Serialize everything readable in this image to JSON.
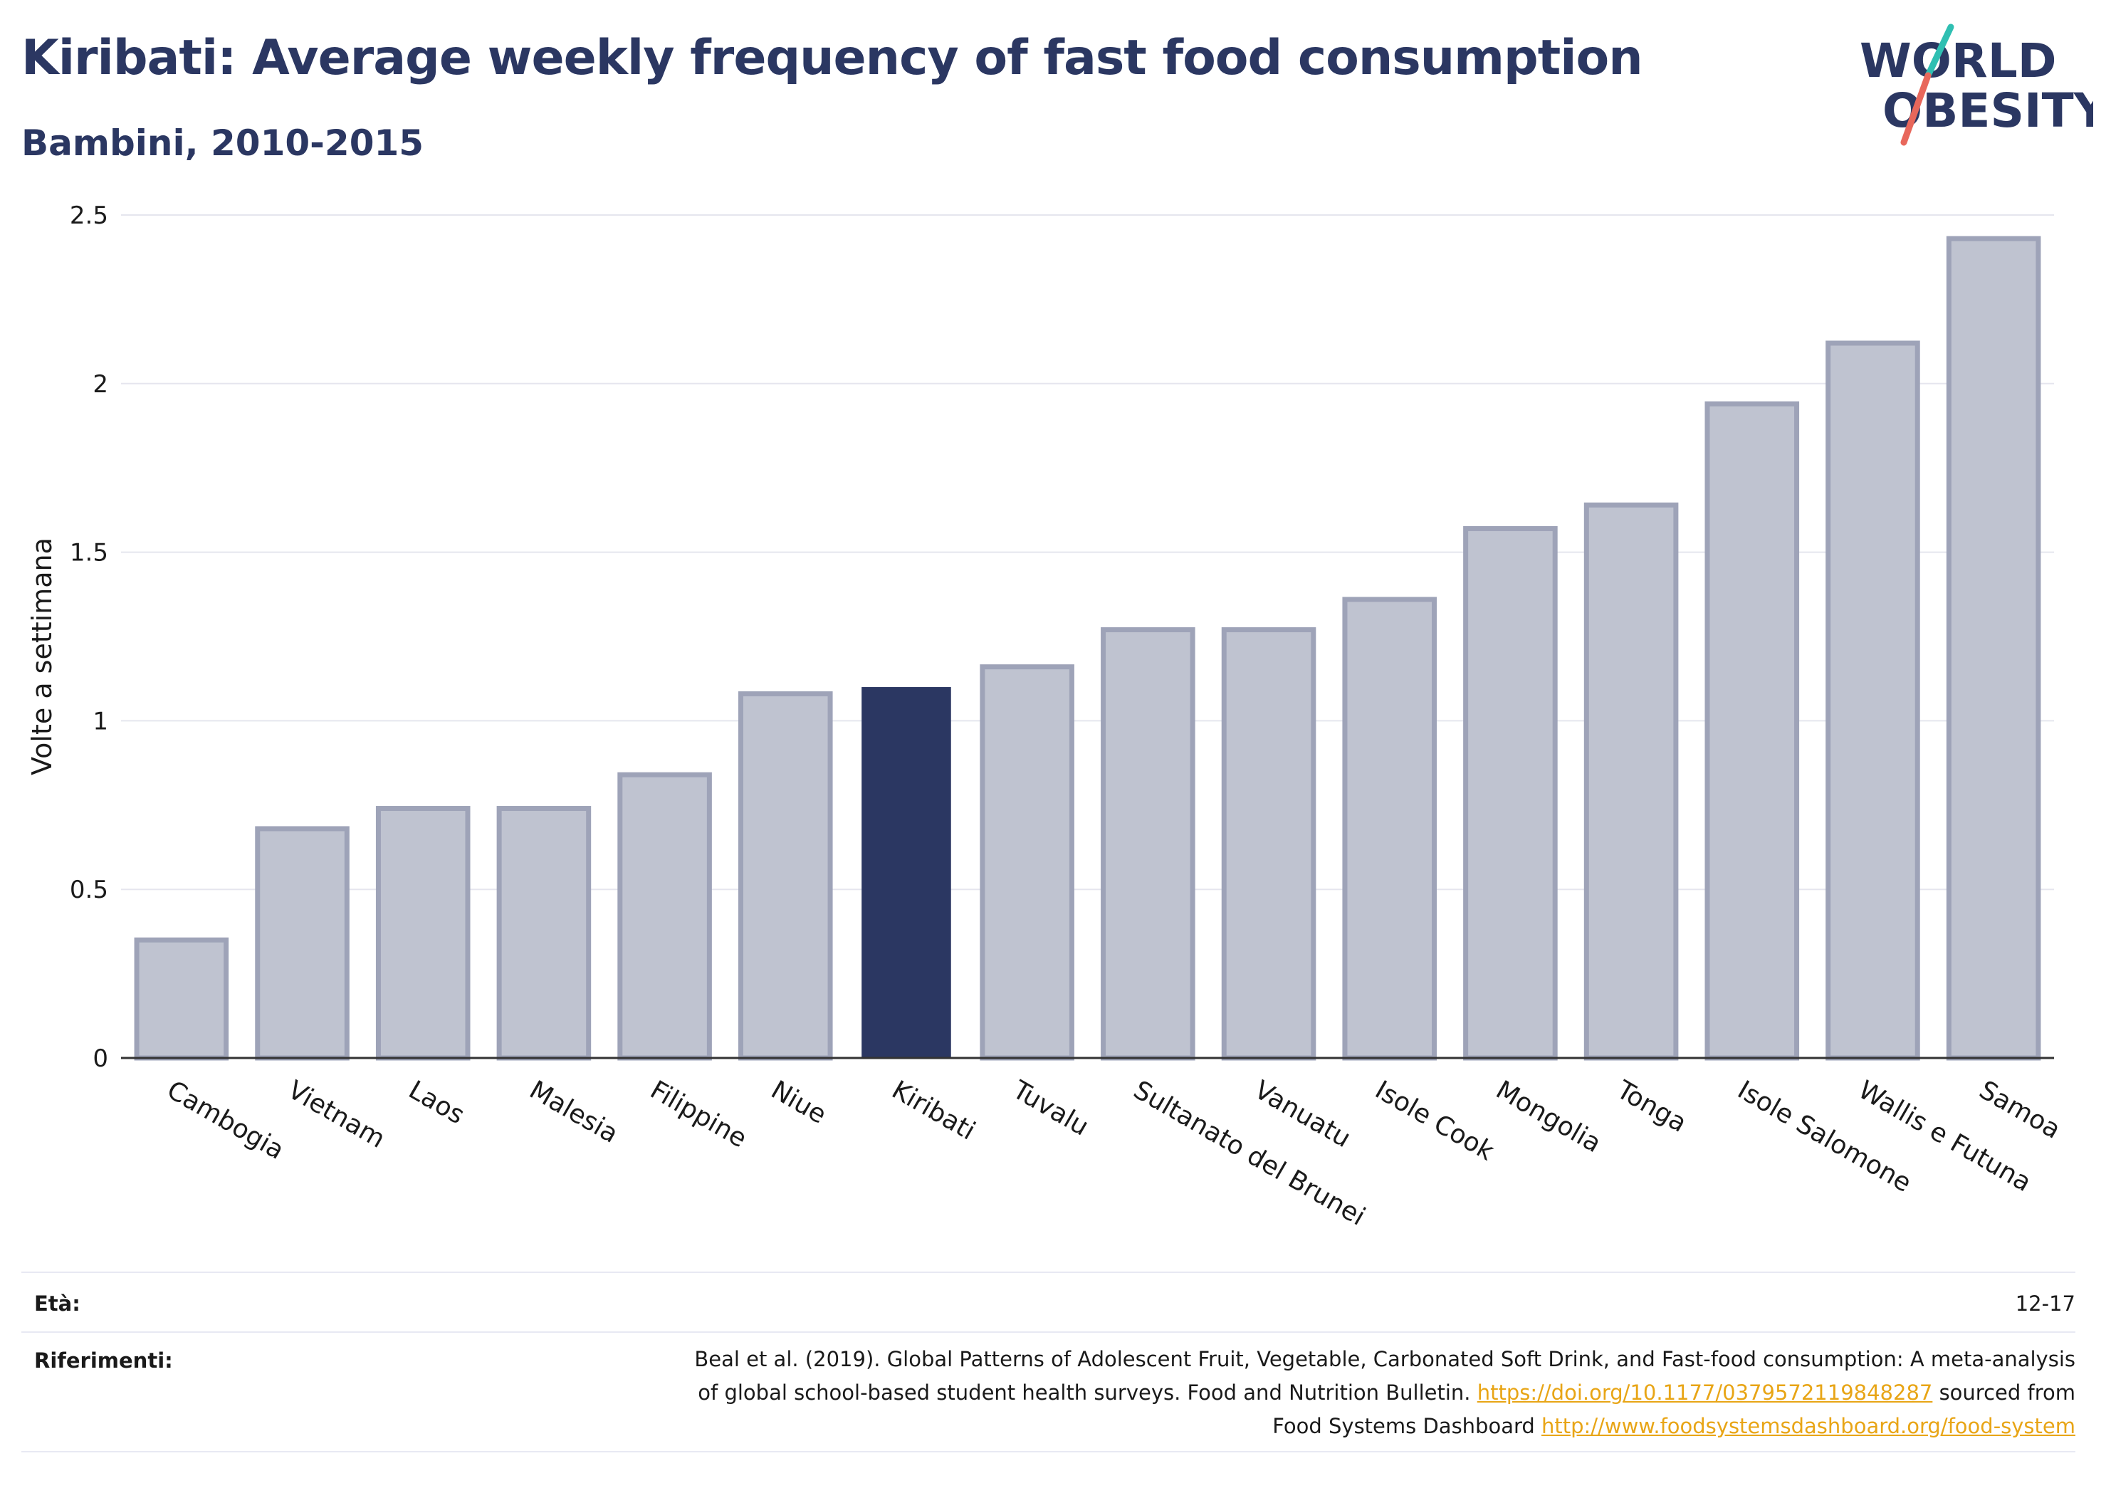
{
  "header": {
    "title": "Kiribati: Average weekly frequency of fast food consumption",
    "subtitle": "Bambini, 2010-2015"
  },
  "logo": {
    "line1": "WORLD",
    "line2": "OBESITY",
    "text_color": "#2b3762",
    "slash_colors": [
      "#2fbfb2",
      "#e8675b"
    ]
  },
  "colors": {
    "bar_default": "#bfc3d0",
    "bar_default_stroke": "#9ea3b8",
    "bar_highlight": "#2b3762",
    "gridline": "#e5e6ee",
    "axis_line": "#333333",
    "text": "#1a1a1a"
  },
  "chart_data": {
    "type": "bar",
    "title": "",
    "ylabel": "Volte a settimana",
    "xlabel": "",
    "ylim": [
      0,
      2.5
    ],
    "yticks": [
      0,
      0.5,
      1,
      1.5,
      2,
      2.5
    ],
    "ytick_labels": [
      "0",
      "0.5",
      "1",
      "1.5",
      "2",
      "2.5"
    ],
    "grid": true,
    "highlight": "Kiribati",
    "categories": [
      "Cambogia",
      "Vietnam",
      "Laos",
      "Malesia",
      "Filippine",
      "Niue",
      "Kiribati",
      "Tuvalu",
      "Sultanato del Brunei",
      "Vanuatu",
      "Isole Cook",
      "Mongolia",
      "Tonga",
      "Isole Salomone",
      "Wallis e Futuna",
      "Samoa"
    ],
    "values": [
      0.35,
      0.68,
      0.74,
      0.74,
      0.84,
      1.08,
      1.1,
      1.16,
      1.27,
      1.27,
      1.36,
      1.57,
      1.64,
      1.94,
      2.12,
      2.43
    ]
  },
  "footer": {
    "age_label": "Età:",
    "age_value": "12-17",
    "refs_label": "Riferimenti:",
    "refs_line1": "Beal et al. (2019). Global Patterns of Adolescent Fruit, Vegetable, Carbonated Soft Drink, and Fast-food consumption: A meta-analysis",
    "refs_line2_text": "of global school-based student health surveys. Food and Nutrition Bulletin. ",
    "refs_line2_link": "https://doi.org/10.1177/0379572119848287",
    "refs_line2_after": " sourced from",
    "refs_line3_text": "Food Systems Dashboard ",
    "refs_line3_link": "http://www.foodsystemsdashboard.org/food-system"
  }
}
